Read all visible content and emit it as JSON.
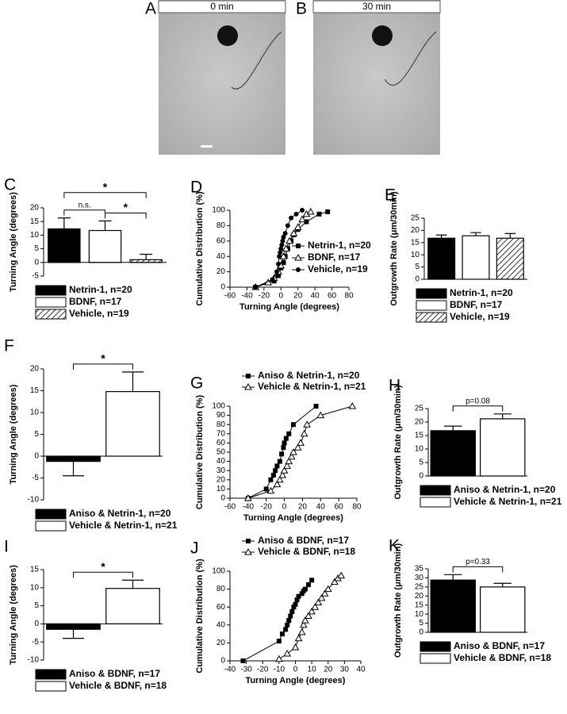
{
  "images": [
    {
      "panel": "A",
      "caption": "0 min"
    },
    {
      "panel": "B",
      "caption": "30 min"
    }
  ],
  "chart_data": [
    {
      "type": "bar",
      "panel": "C",
      "ylabel": "Turning Angle (degrees)",
      "categories": [
        "Netrin-1, n=20",
        "BDNF, n=17",
        "Vehicle, n=19"
      ],
      "values": [
        12.3,
        11.7,
        1.0
      ],
      "errors": [
        4.0,
        3.5,
        2.0
      ],
      "colors": [
        "#000000",
        "#ffffff",
        "#ffffff"
      ],
      "hatched": [
        false,
        false,
        true
      ],
      "ylim": [
        -5,
        20
      ],
      "yticks": [
        -5,
        0,
        5,
        10,
        15,
        20
      ],
      "annotations": [
        {
          "text": "n.s.",
          "between": [
            0,
            1
          ]
        },
        {
          "text": "*",
          "between": [
            1,
            2
          ]
        },
        {
          "text": "*",
          "between": [
            0,
            2
          ]
        }
      ]
    },
    {
      "type": "line",
      "panel": "D",
      "ylabel": "Cumulative Distribution (%)",
      "xlabel": "Turning Angle (degrees)",
      "xlim": [
        -60,
        80
      ],
      "xticks": [
        -60,
        -40,
        -20,
        0,
        20,
        40,
        60,
        80
      ],
      "ylim": [
        0,
        100
      ],
      "yticks": [
        0,
        20,
        40,
        60,
        80,
        100
      ],
      "legend": "lower right",
      "series": [
        {
          "name": "Netrin-1, n=20",
          "color": "#000000",
          "marker": "square",
          "x": [
            -30,
            -8,
            -3,
            0,
            3,
            5,
            8,
            12,
            15,
            20,
            30,
            45,
            55
          ],
          "values": [
            0,
            8,
            15,
            25,
            32,
            40,
            50,
            60,
            68,
            75,
            85,
            95,
            98
          ]
        },
        {
          "name": "BDNF, n=17",
          "color": "#000000",
          "marker": "triangle",
          "x": [
            -30,
            -15,
            -8,
            -3,
            0,
            3,
            6,
            10,
            15,
            20,
            25,
            30,
            35
          ],
          "values": [
            0,
            6,
            12,
            20,
            28,
            40,
            50,
            60,
            70,
            78,
            88,
            95,
            98
          ]
        },
        {
          "name": "Vehicle, n=19",
          "color": "#000000",
          "marker": "circle",
          "x": [
            -30,
            -10,
            -5,
            -3,
            -2,
            -1,
            0,
            1,
            2,
            3,
            5,
            8,
            12,
            18,
            25
          ],
          "values": [
            0,
            10,
            20,
            30,
            40,
            45,
            50,
            55,
            60,
            65,
            70,
            80,
            90,
            95,
            100
          ]
        }
      ]
    },
    {
      "type": "bar",
      "panel": "E",
      "ylabel": "Outgrowth Rate (μm/30min)",
      "categories": [
        "Netrin-1, n=20",
        "BDNF, n=17",
        "Vehicle, n=19"
      ],
      "values": [
        16.8,
        17.8,
        16.8
      ],
      "errors": [
        1.3,
        1.3,
        1.9
      ],
      "colors": [
        "#000000",
        "#ffffff",
        "#ffffff"
      ],
      "hatched": [
        false,
        false,
        true
      ],
      "ylim": [
        0,
        25
      ],
      "yticks": [
        0,
        5,
        10,
        15,
        20,
        25
      ],
      "annotations": []
    },
    {
      "type": "bar",
      "panel": "F",
      "ylabel": "Turning Angle (degrees)",
      "categories": [
        "Aniso & Netrin-1, n=20",
        "Vehicle & Netrin-1, n=21"
      ],
      "values": [
        -1.2,
        14.8
      ],
      "errors": [
        3.3,
        4.5
      ],
      "colors": [
        "#000000",
        "#ffffff"
      ],
      "hatched": [
        false,
        false
      ],
      "ylim": [
        -10,
        20
      ],
      "yticks": [
        -10,
        -5,
        0,
        5,
        10,
        15,
        20
      ],
      "annotations": [
        {
          "text": "*",
          "between": [
            0,
            1
          ]
        }
      ]
    },
    {
      "type": "line",
      "panel": "G",
      "ylabel": "Cumulative Distribution (%)",
      "xlabel": "Turning Angle (degrees)",
      "xlim": [
        -60,
        80
      ],
      "xticks": [
        -60,
        -40,
        -20,
        0,
        20,
        40,
        60,
        80
      ],
      "ylim": [
        0,
        100
      ],
      "yticks": [
        0,
        10,
        20,
        30,
        40,
        50,
        60,
        70,
        80,
        90,
        100
      ],
      "legend": "top",
      "series": [
        {
          "name": "Aniso & Netrin-1, n=20",
          "color": "#000000",
          "marker": "square",
          "x": [
            -40,
            -20,
            -15,
            -12,
            -10,
            -8,
            -5,
            -3,
            -1,
            0,
            2,
            5,
            10,
            35
          ],
          "values": [
            0,
            10,
            20,
            25,
            30,
            35,
            40,
            48,
            55,
            60,
            65,
            70,
            80,
            100
          ]
        },
        {
          "name": "Vehicle & Netrin-1, n=21",
          "color": "#000000",
          "marker": "triangle",
          "x": [
            -40,
            -15,
            -8,
            -5,
            -2,
            0,
            3,
            5,
            8,
            10,
            15,
            18,
            22,
            25,
            40,
            75
          ],
          "values": [
            0,
            8,
            15,
            20,
            25,
            30,
            35,
            40,
            45,
            50,
            55,
            60,
            70,
            80,
            90,
            100
          ]
        }
      ]
    },
    {
      "type": "bar",
      "panel": "H",
      "ylabel": "Outgrowth Rate (μm/30min)",
      "categories": [
        "Aniso & Netrin-1, n=20",
        "Vehicle & Netrin-1, n=21"
      ],
      "values": [
        16.8,
        21.2
      ],
      "errors": [
        1.7,
        1.8
      ],
      "colors": [
        "#000000",
        "#ffffff"
      ],
      "hatched": [
        false,
        false
      ],
      "ylim": [
        0,
        25
      ],
      "yticks": [
        0,
        5,
        10,
        15,
        20,
        25
      ],
      "annotations": [
        {
          "text": "p=0.08",
          "between": [
            0,
            1
          ]
        }
      ]
    },
    {
      "type": "bar",
      "panel": "I",
      "ylabel": "Turning Angle (degrees)",
      "categories": [
        "Aniso & BDNF, n=17",
        "Vehicle & BDNF, n=18"
      ],
      "values": [
        -1.5,
        9.8
      ],
      "errors": [
        2.5,
        2.3
      ],
      "colors": [
        "#000000",
        "#ffffff"
      ],
      "hatched": [
        false,
        false
      ],
      "ylim": [
        -10,
        15
      ],
      "yticks": [
        -10,
        -5,
        0,
        5,
        10,
        15
      ],
      "annotations": [
        {
          "text": "*",
          "between": [
            0,
            1
          ]
        }
      ]
    },
    {
      "type": "line",
      "panel": "J",
      "ylabel": "Cumulative Distribution (%)",
      "xlabel": "Turning Angle (degrees)",
      "xlim": [
        -40,
        40
      ],
      "xticks": [
        -40,
        -30,
        -20,
        -10,
        0,
        10,
        20,
        30,
        40
      ],
      "ylim": [
        0,
        100
      ],
      "yticks": [
        0,
        20,
        40,
        60,
        80,
        100
      ],
      "legend": "top",
      "series": [
        {
          "name": "Aniso & BDNF, n=17",
          "color": "#000000",
          "marker": "square",
          "x": [
            -32,
            -10,
            -8,
            -6,
            -5,
            -4,
            -3,
            -2,
            -1,
            0,
            1,
            2,
            4,
            5,
            6,
            8,
            10
          ],
          "values": [
            0,
            22,
            30,
            35,
            40,
            45,
            50,
            55,
            60,
            63,
            68,
            72,
            75,
            78,
            80,
            85,
            90
          ]
        },
        {
          "name": "Vehicle & BDNF, n=18",
          "color": "#000000",
          "marker": "triangle",
          "x": [
            -10,
            -5,
            0,
            2,
            4,
            5,
            6,
            8,
            10,
            12,
            14,
            16,
            18,
            20,
            24,
            26,
            28
          ],
          "values": [
            2,
            8,
            15,
            25,
            32,
            40,
            45,
            50,
            55,
            60,
            65,
            70,
            75,
            80,
            88,
            92,
            95
          ]
        }
      ]
    },
    {
      "type": "bar",
      "panel": "K",
      "ylabel": "Outgrowth Rate (μm/30min)",
      "categories": [
        "Aniso & BDNF, n=17",
        "Vehicle & BDNF, n=18"
      ],
      "values": [
        28.8,
        25.0
      ],
      "errors": [
        3.0,
        2.0
      ],
      "colors": [
        "#000000",
        "#ffffff"
      ],
      "hatched": [
        false,
        false
      ],
      "ylim": [
        0,
        35
      ],
      "yticks": [
        0,
        5,
        10,
        15,
        20,
        25,
        30,
        35
      ],
      "annotations": [
        {
          "text": "p=0.33",
          "between": [
            0,
            1
          ]
        }
      ]
    }
  ]
}
